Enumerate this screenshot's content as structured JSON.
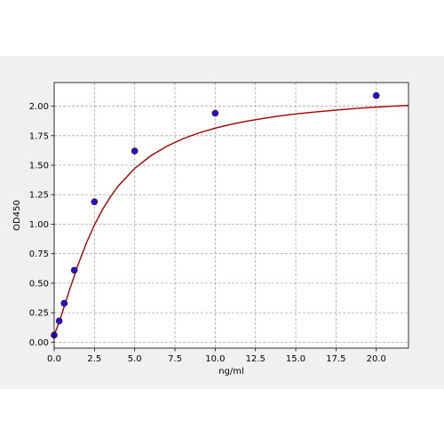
{
  "chart_data": {
    "type": "scatter",
    "title": "",
    "xlabel": "ng/ml",
    "ylabel": "OD450",
    "xlim": [
      0,
      22
    ],
    "ylim": [
      -0.05,
      2.2
    ],
    "grid": true,
    "x_ticks": [
      "0.0",
      "2.5",
      "5.0",
      "7.5",
      "10.0",
      "12.5",
      "15.0",
      "17.5",
      "20.0"
    ],
    "y_ticks": [
      "0.00",
      "0.25",
      "0.50",
      "0.75",
      "1.00",
      "1.25",
      "1.50",
      "1.75",
      "2.00"
    ],
    "points": {
      "x": [
        0,
        0.313,
        0.625,
        1.25,
        2.5,
        5,
        10,
        20
      ],
      "y": [
        0.06,
        0.18,
        0.33,
        0.61,
        1.19,
        1.62,
        1.94,
        2.09
      ]
    },
    "fit_curve": {
      "x": [
        0,
        0.25,
        0.5,
        0.75,
        1,
        1.5,
        2,
        2.5,
        3,
        3.5,
        4,
        5,
        6,
        7,
        8,
        9,
        10,
        11,
        12,
        13,
        14,
        15,
        16,
        17,
        18,
        19,
        20,
        21,
        22
      ],
      "y": [
        0.06,
        0.148,
        0.249,
        0.356,
        0.462,
        0.662,
        0.84,
        0.994,
        1.124,
        1.234,
        1.327,
        1.473,
        1.58,
        1.661,
        1.724,
        1.774,
        1.814,
        1.847,
        1.874,
        1.897,
        1.917,
        1.934,
        1.948,
        1.961,
        1.973,
        1.983,
        1.992,
        2.0,
        2.007
      ]
    },
    "colors": {
      "point_fill": "#1f10d6",
      "point_edge": "#5a0a3c",
      "curve": "#a00000",
      "grid": "#a8a8a8",
      "plot_bg": "#ffffff",
      "figure_bg": "#f0f0f0"
    }
  }
}
